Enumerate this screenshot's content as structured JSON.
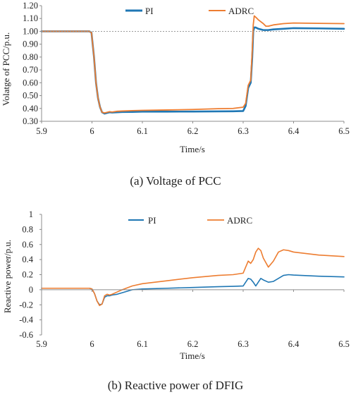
{
  "colors": {
    "pi": "#1f77b4",
    "adrc": "#ed7d31",
    "reference_line": "#9a9a9a",
    "axis": "#8c8c8c"
  },
  "chart_data": [
    {
      "type": "line",
      "caption": "(a) Voltage of PCC",
      "xlabel": "Time/s",
      "ylabel": "Volatge of PCC/p.u.",
      "xlim": [
        5.9,
        6.5
      ],
      "ylim": [
        0.3,
        1.2
      ],
      "xticks": [
        "5.9",
        "6",
        "6.1",
        "6.2",
        "6.3",
        "6.4",
        "6.5"
      ],
      "yticks": [
        "0.30",
        "0.40",
        "0.50",
        "0.60",
        "0.70",
        "0.80",
        "0.90",
        "1.00",
        "1.10",
        "1.20"
      ],
      "grid": false,
      "legend_position": "top-center",
      "reference_line": {
        "y": 1.0,
        "style": "dotted"
      },
      "series": [
        {
          "name": "PI",
          "color_key": "pi",
          "line_width": 2.6,
          "x": [
            5.9,
            5.995,
            5.999,
            6.004,
            6.008,
            6.012,
            6.016,
            6.02,
            6.025,
            6.03,
            6.035,
            6.04,
            6.05,
            6.06,
            6.08,
            6.1,
            6.15,
            6.2,
            6.25,
            6.28,
            6.3,
            6.305,
            6.31,
            6.315,
            6.318,
            6.32,
            6.322,
            6.325,
            6.33,
            6.34,
            6.35,
            6.36,
            6.38,
            6.4,
            6.45,
            6.5
          ],
          "y": [
            1.0,
            1.0,
            0.99,
            0.8,
            0.6,
            0.48,
            0.41,
            0.37,
            0.36,
            0.365,
            0.37,
            0.368,
            0.37,
            0.372,
            0.373,
            0.375,
            0.375,
            0.376,
            0.377,
            0.378,
            0.38,
            0.42,
            0.56,
            0.6,
            0.8,
            1.0,
            1.03,
            1.03,
            1.02,
            1.01,
            1.01,
            1.015,
            1.02,
            1.025,
            1.023,
            1.02
          ]
        },
        {
          "name": "ADRC",
          "color_key": "adrc",
          "line_width": 1.8,
          "x": [
            5.9,
            5.995,
            5.999,
            6.004,
            6.008,
            6.012,
            6.016,
            6.02,
            6.025,
            6.03,
            6.035,
            6.04,
            6.05,
            6.06,
            6.08,
            6.1,
            6.15,
            6.2,
            6.25,
            6.28,
            6.3,
            6.305,
            6.31,
            6.315,
            6.318,
            6.32,
            6.322,
            6.325,
            6.33,
            6.34,
            6.345,
            6.35,
            6.36,
            6.38,
            6.4,
            6.45,
            6.5
          ],
          "y": [
            1.0,
            1.0,
            0.99,
            0.8,
            0.6,
            0.48,
            0.41,
            0.37,
            0.365,
            0.37,
            0.375,
            0.372,
            0.378,
            0.38,
            0.383,
            0.385,
            0.388,
            0.392,
            0.398,
            0.4,
            0.41,
            0.44,
            0.58,
            0.62,
            0.85,
            1.05,
            1.12,
            1.11,
            1.09,
            1.06,
            1.04,
            1.04,
            1.05,
            1.06,
            1.065,
            1.062,
            1.06
          ]
        }
      ]
    },
    {
      "type": "line",
      "caption": "(b) Reactive power of DFIG",
      "xlabel": "Time/s",
      "ylabel": "Reactive power/p.u.",
      "xlim": [
        5.9,
        6.5
      ],
      "ylim": [
        -0.6,
        1.0
      ],
      "xticks": [
        "5.9",
        "6",
        "6.1",
        "6.2",
        "6.3",
        "6.4",
        "6.5"
      ],
      "yticks": [
        "-0.6",
        "-0.4",
        "-0.2",
        "0",
        "0.2",
        "0.4",
        "0.6",
        "0.8",
        "1"
      ],
      "grid": false,
      "legend_position": "top-center",
      "series": [
        {
          "name": "PI",
          "color_key": "pi",
          "line_width": 1.6,
          "x": [
            5.9,
            5.995,
            6.0,
            6.005,
            6.01,
            6.015,
            6.02,
            6.025,
            6.03,
            6.035,
            6.04,
            6.05,
            6.06,
            6.08,
            6.1,
            6.15,
            6.2,
            6.25,
            6.28,
            6.3,
            6.305,
            6.31,
            6.315,
            6.32,
            6.325,
            6.33,
            6.335,
            6.34,
            6.35,
            6.36,
            6.37,
            6.38,
            6.39,
            6.4,
            6.45,
            6.5
          ],
          "y": [
            0.02,
            0.02,
            0.01,
            -0.05,
            -0.15,
            -0.2,
            -0.19,
            -0.1,
            -0.08,
            -0.08,
            -0.07,
            -0.06,
            -0.04,
            0.0,
            0.01,
            0.02,
            0.03,
            0.04,
            0.045,
            0.05,
            0.1,
            0.15,
            0.14,
            0.1,
            0.05,
            0.1,
            0.15,
            0.13,
            0.1,
            0.11,
            0.15,
            0.19,
            0.2,
            0.195,
            0.18,
            0.17
          ]
        },
        {
          "name": "ADRC",
          "color_key": "adrc",
          "line_width": 1.6,
          "x": [
            5.9,
            5.995,
            6.0,
            6.005,
            6.01,
            6.015,
            6.02,
            6.025,
            6.03,
            6.035,
            6.04,
            6.05,
            6.06,
            6.08,
            6.1,
            6.15,
            6.2,
            6.25,
            6.28,
            6.3,
            6.305,
            6.31,
            6.315,
            6.32,
            6.325,
            6.33,
            6.335,
            6.34,
            6.35,
            6.36,
            6.37,
            6.38,
            6.39,
            6.4,
            6.45,
            6.5
          ],
          "y": [
            0.02,
            0.02,
            0.01,
            -0.05,
            -0.15,
            -0.21,
            -0.19,
            -0.08,
            -0.06,
            -0.07,
            -0.06,
            -0.03,
            0.0,
            0.05,
            0.08,
            0.12,
            0.16,
            0.19,
            0.2,
            0.22,
            0.3,
            0.38,
            0.35,
            0.4,
            0.5,
            0.55,
            0.52,
            0.42,
            0.3,
            0.38,
            0.5,
            0.53,
            0.52,
            0.5,
            0.46,
            0.44
          ]
        }
      ]
    }
  ]
}
